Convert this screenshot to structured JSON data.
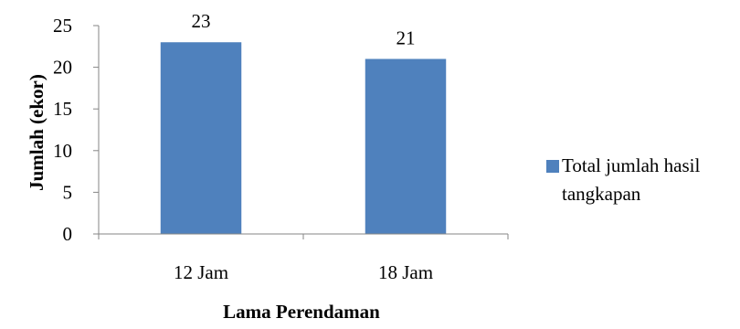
{
  "chart_data": {
    "type": "bar",
    "categories": [
      "12 Jam",
      "18 Jam"
    ],
    "series": [
      {
        "name": "Total jumlah hasil tangkapan",
        "values": [
          23,
          21
        ],
        "color": "#4f81bd"
      }
    ],
    "data_labels": [
      "23",
      "21"
    ],
    "xlabel": "Lama Perendaman",
    "ylabel": "Jumlah (ekor)",
    "ylim": [
      0,
      25
    ],
    "yticks": [
      "0",
      "5",
      "10",
      "15",
      "20",
      "25"
    ],
    "grid": false,
    "legend_position": "right",
    "legend_lines": [
      "Total jumlah hasil",
      "tangkapan"
    ]
  }
}
